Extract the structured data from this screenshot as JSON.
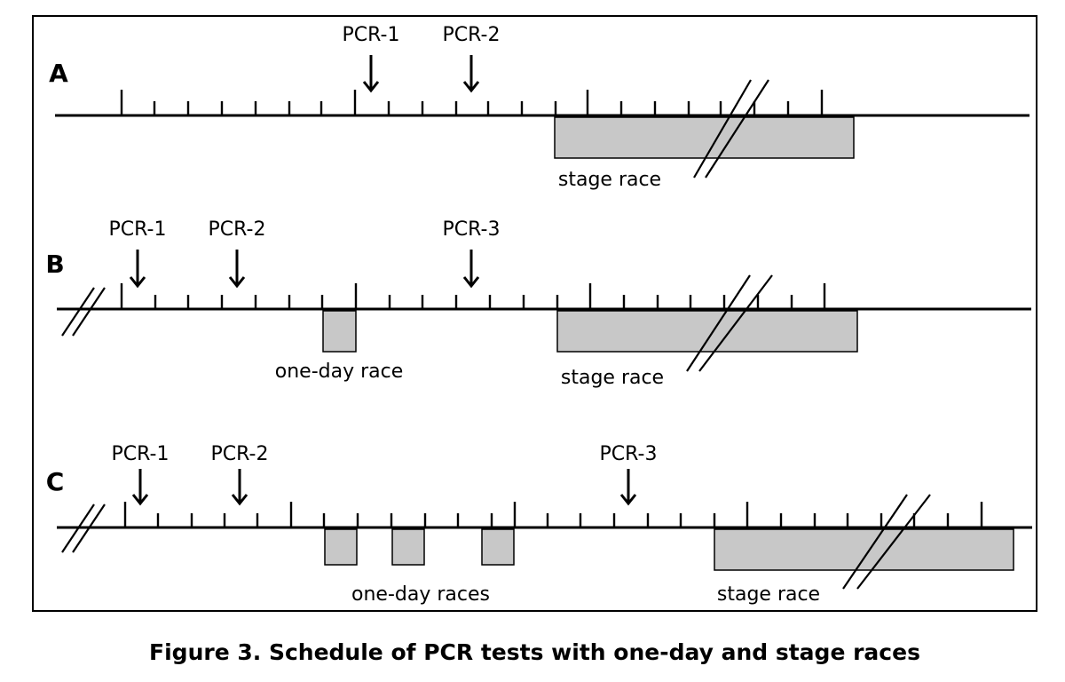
{
  "caption": "Figure 3. Schedule of PCR tests with one-day and stage races",
  "colors": {
    "line": "#000000",
    "race_fill": "#c8c8c8",
    "frame": "#000000"
  },
  "panels": [
    {
      "label": "A",
      "pcr_labels": [
        "PCR-1",
        "PCR-2"
      ],
      "race_labels": [
        "stage race"
      ]
    },
    {
      "label": "B",
      "pcr_labels": [
        "PCR-1",
        "PCR-2",
        "PCR-3"
      ],
      "race_labels": [
        "one-day race",
        "stage race"
      ]
    },
    {
      "label": "C",
      "pcr_labels": [
        "PCR-1",
        "PCR-2",
        "PCR-3"
      ],
      "race_labels": [
        "one-day races",
        "stage race"
      ]
    }
  ]
}
